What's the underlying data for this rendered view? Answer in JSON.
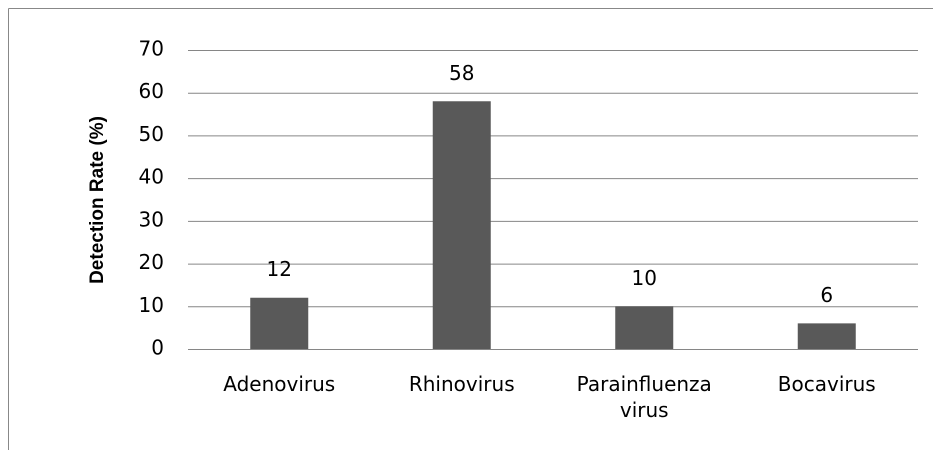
{
  "chart_data": {
    "type": "bar",
    "y_label": "Detection Rate (%)",
    "categories": [
      "Adenovirus",
      "Rhinovirus",
      "Parainfluenza virus",
      "Bocavirus"
    ],
    "values": [
      12,
      58,
      10,
      6
    ],
    "color": "#595959",
    "ylim": [
      0,
      70
    ],
    "yticks": [
      0,
      10,
      20,
      30,
      40,
      50,
      60,
      70
    ],
    "grid": true
  }
}
